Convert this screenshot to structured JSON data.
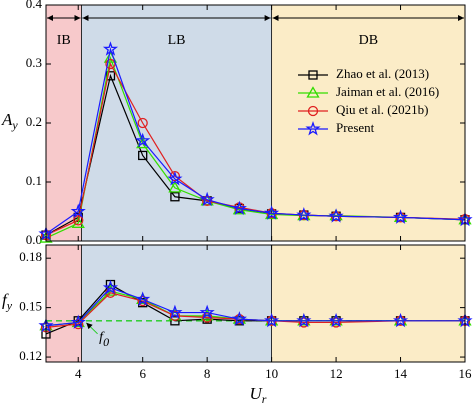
{
  "chart_data": [
    {
      "type": "line",
      "ylabel": [
        "A",
        "y"
      ],
      "x": [
        3,
        4,
        5,
        6,
        7,
        8,
        9,
        10,
        11,
        12,
        14,
        16
      ],
      "xlim": [
        3,
        16
      ],
      "ylim": [
        0,
        0.4
      ],
      "yticks": [
        {
          "value": 0,
          "label": "0.0"
        },
        0.1,
        0.2,
        0.3,
        0.4
      ],
      "regions": [
        {
          "label": "IB",
          "range": [
            3,
            4.1
          ],
          "color": "#f7c9cb"
        },
        {
          "label": "LB",
          "range": [
            4.1,
            10
          ],
          "color": "#cfdbe8"
        },
        {
          "label": "DB",
          "range": [
            10,
            16
          ],
          "color": "#fbecc7"
        }
      ],
      "legend": "upper right",
      "series": [
        {
          "name": "Zhao et al. (2013)",
          "color": "#000000",
          "marker": "square",
          "values": [
            0.01,
            0.04,
            0.28,
            0.145,
            0.075,
            0.068,
            0.055,
            0.046,
            0.044,
            0.042,
            0.04,
            0.036
          ]
        },
        {
          "name": "Jaiman et al. (2016)",
          "color": "#33dd00",
          "marker": "triangle",
          "values": [
            0.005,
            0.03,
            0.31,
            0.165,
            0.09,
            0.068,
            0.053,
            0.045,
            0.043,
            0.043,
            0.04,
            0.036
          ]
        },
        {
          "name": "Qiu et al. (2021b)",
          "color": "#e02020",
          "marker": "circle",
          "values": [
            0.01,
            0.035,
            0.3,
            0.2,
            0.11,
            0.068,
            0.057,
            0.047,
            0.044,
            0.042,
            0.04,
            0.037
          ]
        },
        {
          "name": "Present",
          "color": "#1a1aff",
          "marker": "star",
          "values": [
            0.012,
            0.05,
            0.325,
            0.17,
            0.105,
            0.07,
            0.055,
            0.047,
            0.044,
            0.042,
            0.04,
            0.036
          ]
        }
      ]
    },
    {
      "type": "line",
      "ylabel": [
        "f",
        "y"
      ],
      "xlabel": [
        "U",
        "r"
      ],
      "x": [
        3,
        4,
        5,
        6,
        7,
        8,
        9,
        10,
        11,
        12,
        14,
        16
      ],
      "xlim": [
        3,
        16
      ],
      "xticks": [
        4,
        6,
        8,
        10,
        12,
        14,
        16
      ],
      "ylim": [
        0.117,
        0.188
      ],
      "yticks": [
        0.12,
        0.15,
        0.18
      ],
      "hline": {
        "value": 0.142,
        "label": [
          "f",
          "0"
        ],
        "color": "#22cc22"
      },
      "series": [
        {
          "color": "#000000",
          "marker": "square",
          "values": [
            0.134,
            0.142,
            0.164,
            0.153,
            0.142,
            0.143,
            0.142,
            0.142,
            0.142,
            0.142,
            0.142,
            0.142
          ]
        },
        {
          "color": "#33dd00",
          "marker": "triangle",
          "values": [
            0.139,
            0.141,
            0.16,
            0.155,
            0.145,
            0.145,
            0.143,
            0.142,
            0.142,
            0.142,
            0.142,
            0.142
          ]
        },
        {
          "color": "#e02020",
          "marker": "circle",
          "values": [
            0.138,
            0.14,
            0.159,
            0.154,
            0.145,
            0.144,
            0.143,
            0.142,
            0.141,
            0.141,
            0.142,
            0.142
          ]
        },
        {
          "color": "#1a1aff",
          "marker": "star",
          "values": [
            0.139,
            0.141,
            0.162,
            0.155,
            0.147,
            0.147,
            0.143,
            0.142,
            0.142,
            0.142,
            0.142,
            0.142
          ]
        }
      ]
    }
  ]
}
